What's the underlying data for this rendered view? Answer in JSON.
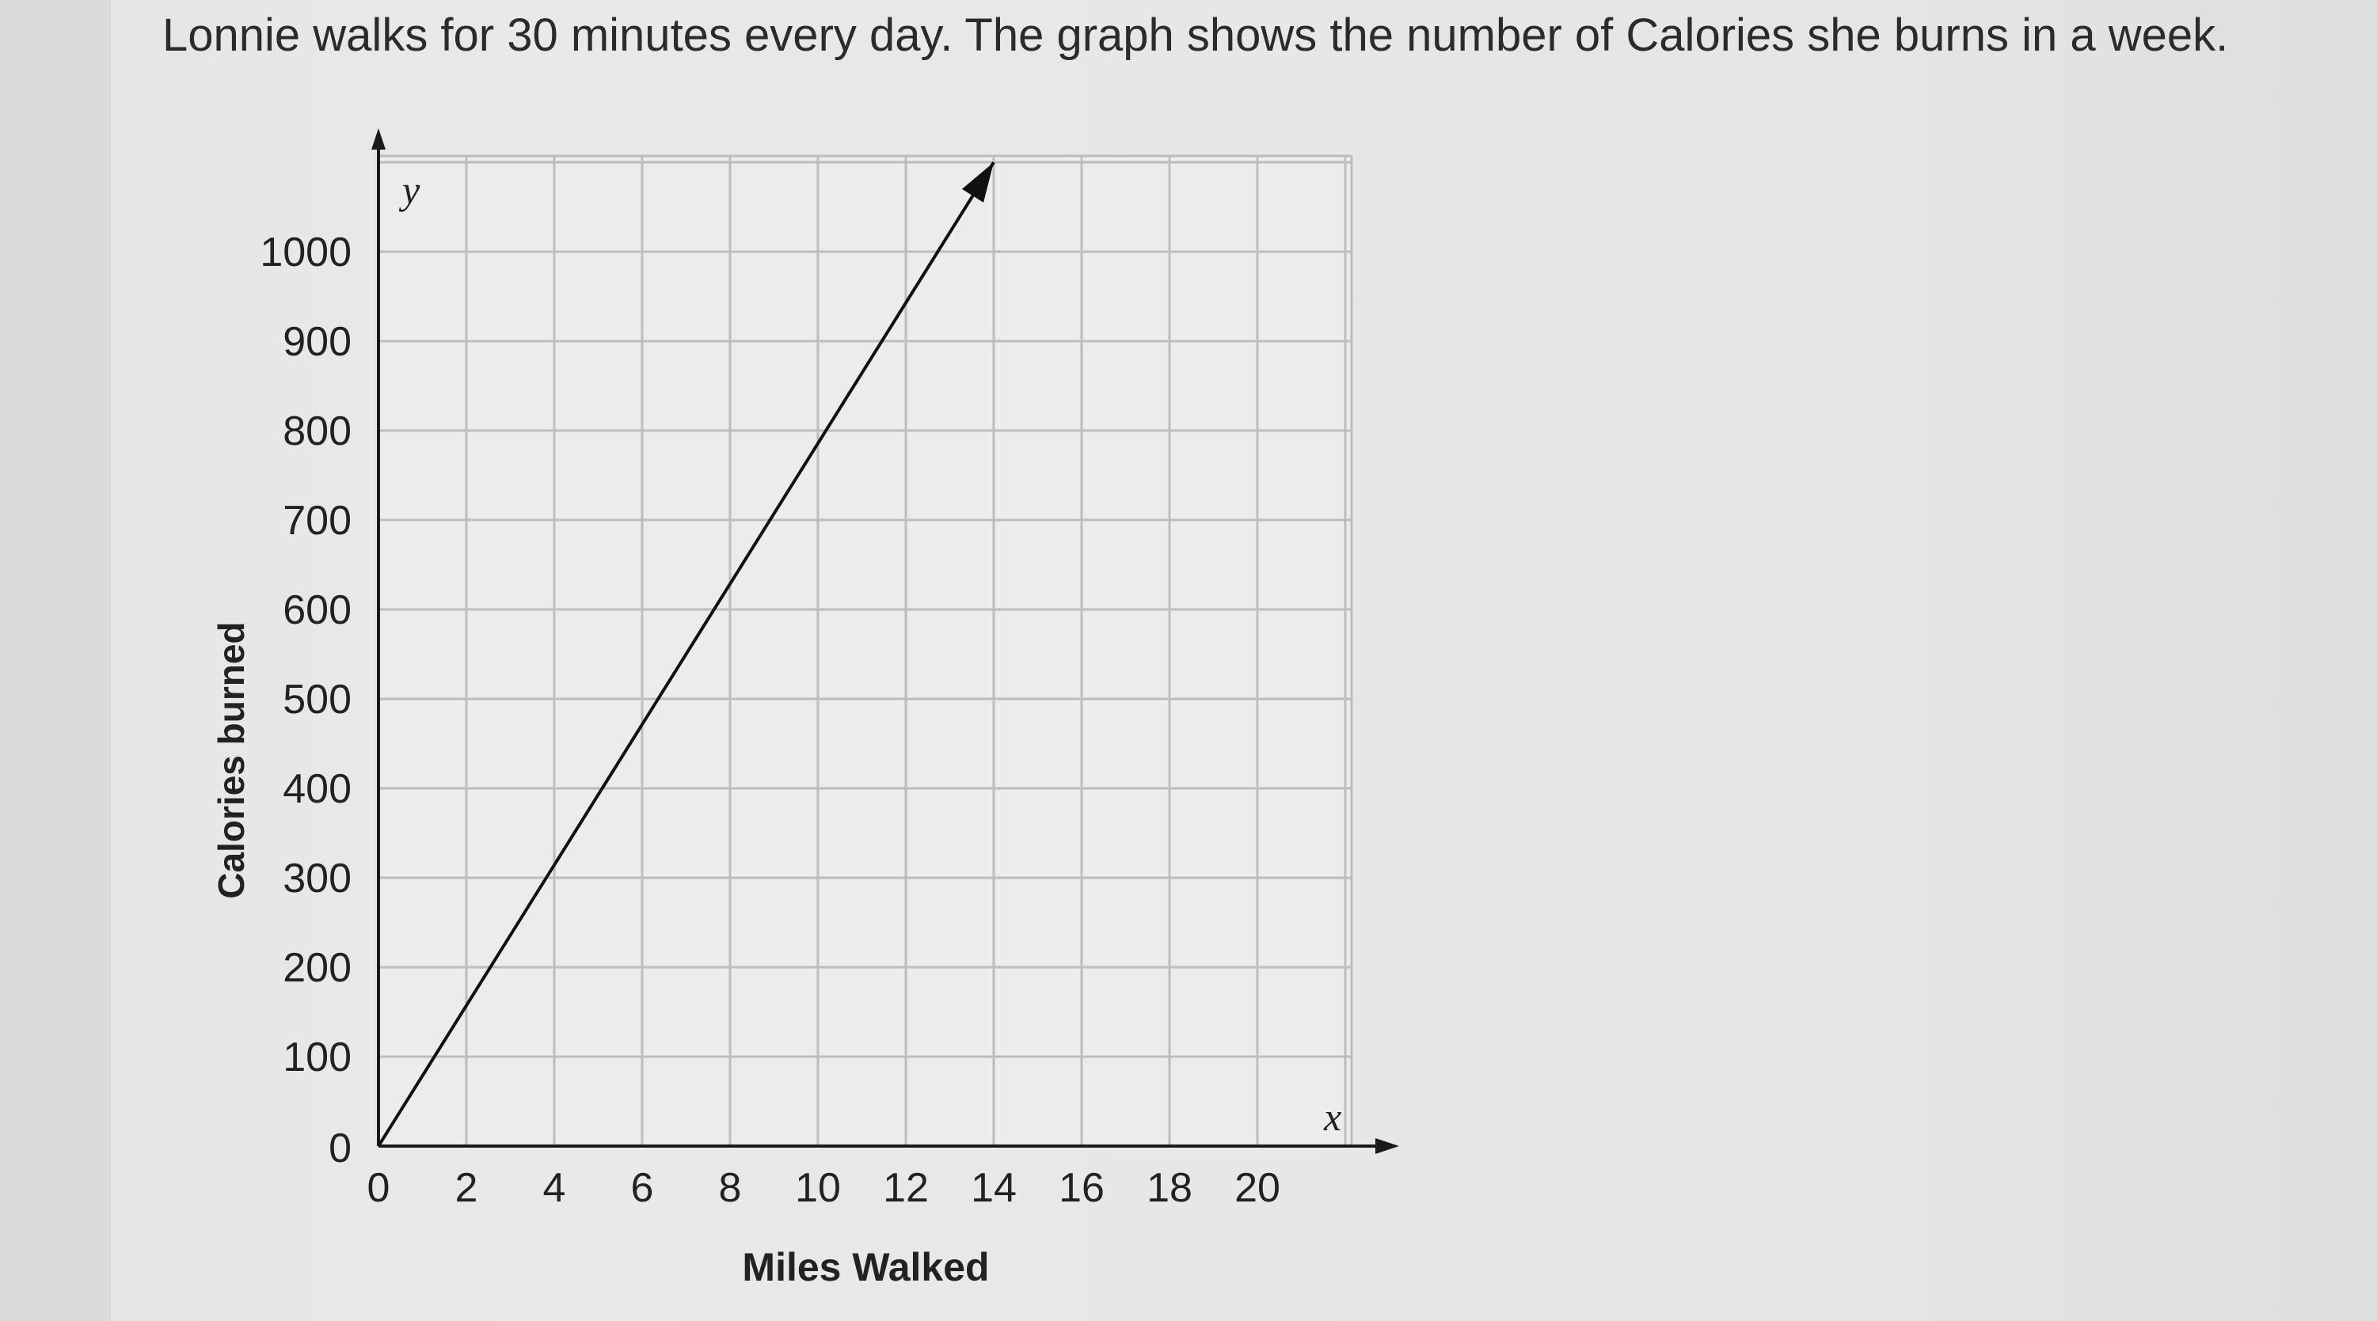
{
  "question": "Lonnie walks for 30 minutes every day. The graph shows the number of Calories she burns in a week.",
  "chart_data": {
    "type": "line",
    "xlabel": "Miles Walked",
    "ylabel": "Calories burned",
    "x_axis_symbol": "x",
    "y_axis_symbol": "y",
    "xlim": [
      0,
      22
    ],
    "ylim": [
      0,
      1100
    ],
    "x_ticks": [
      0,
      2,
      4,
      6,
      8,
      10,
      12,
      14,
      16,
      18,
      20
    ],
    "y_ticks": [
      0,
      100,
      200,
      300,
      400,
      500,
      600,
      700,
      800,
      900,
      1000
    ],
    "grid": true,
    "series": [
      {
        "x": [
          0,
          14
        ],
        "y": [
          0,
          1100
        ],
        "arrow_end": true
      }
    ]
  },
  "colors": {
    "grid": "#bdbdbd",
    "axis": "#1a1a1a",
    "line": "#111111",
    "text": "#222222"
  }
}
